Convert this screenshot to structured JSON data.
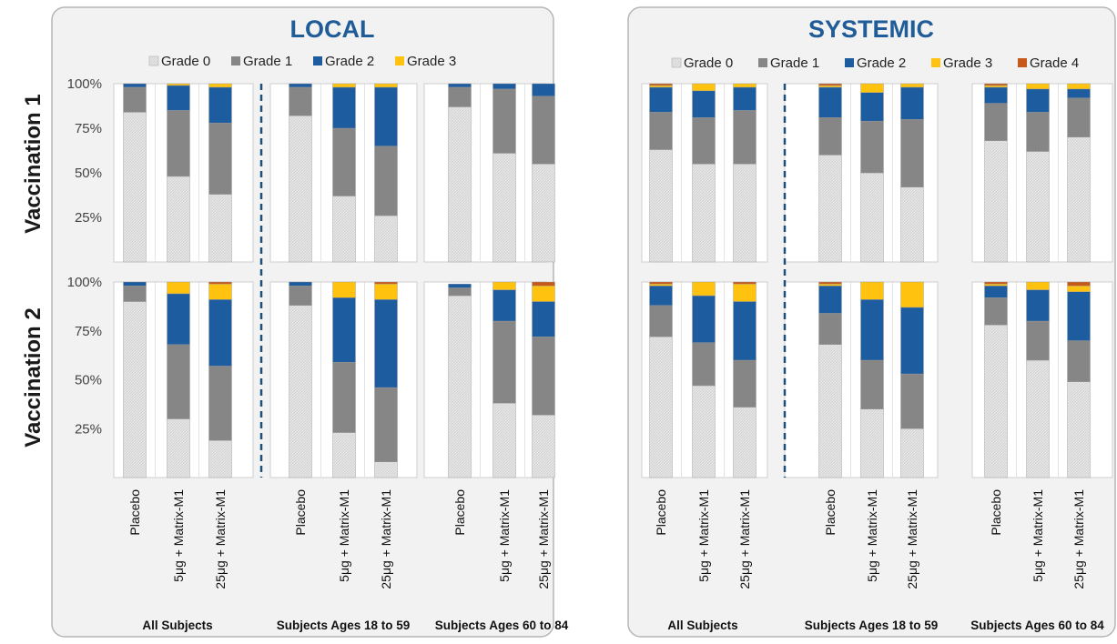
{
  "row_labels": [
    "Vaccination 1",
    "Vaccination 2"
  ],
  "y_ticks": [
    "100%",
    "75%",
    "50%",
    "25%"
  ],
  "grade_colors": {
    "Grade 0": "#e4e4e4",
    "Grade 1": "#868686",
    "Grade 2": "#1d5c9e",
    "Grade 3": "#ffc20e",
    "Grade 4": "#c65a1c"
  },
  "chart_data": [
    {
      "type": "bar",
      "stacked": true,
      "title": "LOCAL",
      "legend": [
        "Grade 0",
        "Grade 1",
        "Grade 2",
        "Grade 3"
      ],
      "legend_placement": "top",
      "ylim": [
        0,
        100
      ],
      "groups": [
        {
          "name": "All Subjects",
          "categories": [
            "Placebo",
            "5μg + Matrix-M1",
            "25μg + Matrix-M1"
          ]
        },
        {
          "name": "Subjects Ages 18 to 59",
          "categories": [
            "Placebo",
            "5μg + Matrix-M1",
            "25μg + Matrix-M1"
          ]
        },
        {
          "name": "Subjects Ages 60 to 84",
          "categories": [
            "Placebo",
            "5μg + Matrix-M1",
            "25μg + Matrix-M1"
          ]
        }
      ],
      "panels": [
        {
          "row": "Vaccination 1",
          "series": [
            {
              "name": "Grade 0",
              "values": [
                84,
                48,
                38,
                82,
                37,
                26,
                87,
                61,
                55
              ]
            },
            {
              "name": "Grade 1",
              "values": [
                14,
                37,
                40,
                16,
                38,
                39,
                11,
                36,
                38
              ]
            },
            {
              "name": "Grade 2",
              "values": [
                2,
                14,
                20,
                2,
                23,
                33,
                2,
                3,
                7
              ]
            },
            {
              "name": "Grade 3",
              "values": [
                0,
                1,
                2,
                0,
                2,
                2,
                0,
                0,
                0
              ]
            }
          ]
        },
        {
          "row": "Vaccination 2",
          "series": [
            {
              "name": "Grade 0",
              "values": [
                90,
                30,
                19,
                88,
                23,
                8,
                93,
                38,
                32
              ]
            },
            {
              "name": "Grade 1",
              "values": [
                8,
                38,
                38,
                10,
                36,
                38,
                4,
                42,
                40
              ]
            },
            {
              "name": "Grade 2",
              "values": [
                2,
                26,
                34,
                2,
                33,
                45,
                2,
                16,
                18
              ]
            },
            {
              "name": "Grade 3",
              "values": [
                0,
                6,
                8,
                0,
                8,
                8,
                0,
                4,
                8
              ]
            },
            {
              "name": "Grade 4",
              "values": [
                0,
                0,
                1,
                0,
                0,
                1,
                0,
                0,
                2
              ]
            }
          ]
        }
      ]
    },
    {
      "type": "bar",
      "stacked": true,
      "title": "SYSTEMIC",
      "legend": [
        "Grade 0",
        "Grade 1",
        "Grade 2",
        "Grade 3",
        "Grade 4"
      ],
      "legend_placement": "top",
      "ylim": [
        0,
        100
      ],
      "groups": [
        {
          "name": "All Subjects",
          "categories": [
            "Placebo",
            "5μg + Matrix-M1",
            "25μg + Matrix-M1"
          ]
        },
        {
          "name": "Subjects Ages 18 to 59",
          "categories": [
            "Placebo",
            "5μg + Matrix-M1",
            "25μg + Matrix-M1"
          ]
        },
        {
          "name": "Subjects Ages 60 to 84",
          "categories": [
            "Placebo",
            "5μg + Matrix-M1",
            "25μg + Matrix-M1"
          ]
        }
      ],
      "panels": [
        {
          "row": "Vaccination 1",
          "series": [
            {
              "name": "Grade 0",
              "values": [
                63,
                55,
                55,
                60,
                50,
                42,
                68,
                62,
                70
              ]
            },
            {
              "name": "Grade 1",
              "values": [
                21,
                26,
                30,
                21,
                29,
                38,
                21,
                22,
                22
              ]
            },
            {
              "name": "Grade 2",
              "values": [
                14,
                15,
                13,
                17,
                16,
                18,
                9,
                13,
                5
              ]
            },
            {
              "name": "Grade 3",
              "values": [
                1,
                4,
                2,
                1,
                5,
                2,
                1,
                3,
                3
              ]
            },
            {
              "name": "Grade 4",
              "values": [
                1,
                0,
                0,
                1,
                0,
                0,
                1,
                0,
                0
              ]
            }
          ]
        },
        {
          "row": "Vaccination 2",
          "series": [
            {
              "name": "Grade 0",
              "values": [
                72,
                47,
                36,
                68,
                35,
                25,
                78,
                60,
                49
              ]
            },
            {
              "name": "Grade 1",
              "values": [
                16,
                22,
                24,
                16,
                25,
                28,
                14,
                20,
                21
              ]
            },
            {
              "name": "Grade 2",
              "values": [
                10,
                24,
                30,
                14,
                31,
                34,
                6,
                16,
                25
              ]
            },
            {
              "name": "Grade 3",
              "values": [
                1,
                7,
                9,
                1,
                9,
                13,
                1,
                4,
                3
              ]
            },
            {
              "name": "Grade 4",
              "values": [
                1,
                0,
                1,
                1,
                0,
                0,
                1,
                0,
                2
              ]
            }
          ]
        }
      ]
    }
  ]
}
